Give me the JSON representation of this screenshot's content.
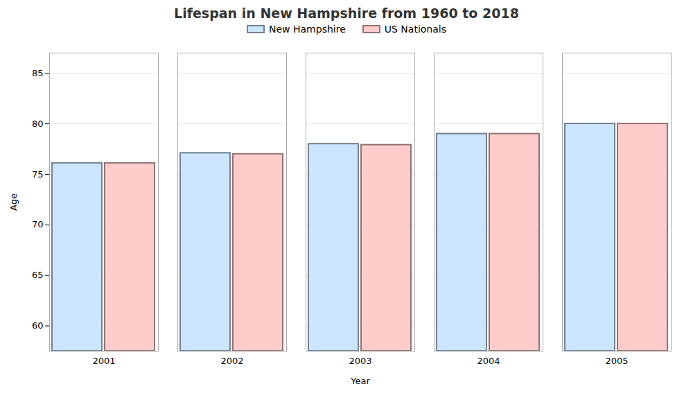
{
  "chart_data": {
    "type": "bar",
    "title": "Lifespan in New Hampshire from 1960 to 2018",
    "x_label": "Year",
    "y_label": "Age",
    "categories": [
      "2001",
      "2002",
      "2003",
      "2004",
      "2005"
    ],
    "series": [
      {
        "name": "New Hampshire",
        "color": "#cce5ff",
        "values": [
          76.1,
          77.1,
          78.0,
          79.0,
          80.0
        ]
      },
      {
        "name": "US Nationals",
        "color": "#ffcccc",
        "values": [
          76.1,
          77.0,
          77.9,
          79.0,
          80.0
        ]
      }
    ],
    "ylim": [
      57.5,
      87
    ],
    "yticks": [
      60,
      65,
      70,
      75,
      80,
      85
    ],
    "grid": true,
    "legend": "top"
  }
}
